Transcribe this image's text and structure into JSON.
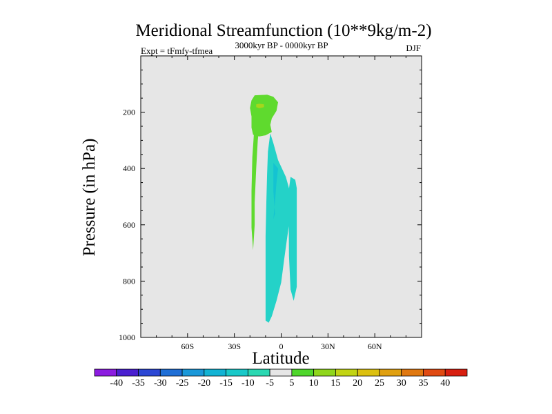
{
  "chart_data": {
    "type": "heatmap",
    "title": "Meridional Streamfunction (10**9kg/m-2)",
    "subtitle_left": "Expt = tFmfy-tfmea",
    "subtitle_center": "3000kyr BP - 0000kyr BP",
    "subtitle_right": "DJF",
    "xlabel": "Latitude",
    "ylabel": "Pressure (in hPa)",
    "xlim": [
      -90,
      90
    ],
    "ylim": [
      1000,
      0
    ],
    "x_ticks": [
      {
        "value": -60,
        "label": "60S"
      },
      {
        "value": -30,
        "label": "30S"
      },
      {
        "value": 0,
        "label": "0"
      },
      {
        "value": 30,
        "label": "30N"
      },
      {
        "value": 60,
        "label": "60N"
      }
    ],
    "y_ticks": [
      {
        "value": 200,
        "label": "200"
      },
      {
        "value": 400,
        "label": "400"
      },
      {
        "value": 600,
        "label": "600"
      },
      {
        "value": 800,
        "label": "800"
      },
      {
        "value": 1000,
        "label": "1000"
      }
    ],
    "background_color": "#e6e6e6",
    "colorbar": {
      "labels": [
        "-40",
        "-35",
        "-30",
        "-25",
        "-20",
        "-15",
        "-10",
        "-5",
        "5",
        "10",
        "15",
        "20",
        "25",
        "30",
        "35",
        "40"
      ],
      "colors": [
        "#8c1ce0",
        "#4a1fd0",
        "#2c47d4",
        "#1f6fd6",
        "#1a98d9",
        "#12b3d4",
        "#19c9c9",
        "#2ad8b2",
        "#e6e6e6",
        "#4fd62c",
        "#8fd61c",
        "#c2d414",
        "#dcc010",
        "#e0a010",
        "#e07810",
        "#e04a12",
        "#d81f10"
      ]
    },
    "regions": [
      {
        "name": "positive-5-to-10-cell-upper",
        "level": "5 to 10",
        "color": "#5fda2e",
        "points": [
          [
            -17,
            140
          ],
          [
            -9,
            138
          ],
          [
            -5,
            145
          ],
          [
            -2,
            165
          ],
          [
            -3,
            195
          ],
          [
            -6,
            222
          ],
          [
            -7,
            245
          ],
          [
            -6,
            270
          ],
          [
            -10,
            282
          ],
          [
            -14,
            286
          ],
          [
            -18,
            280
          ],
          [
            -19,
            255
          ],
          [
            -19,
            215
          ],
          [
            -20,
            185
          ],
          [
            -19,
            158
          ]
        ]
      },
      {
        "name": "positive-10-to-15-core",
        "level": "10 to 15",
        "color": "#a6d61c",
        "points": [
          [
            -16,
            172
          ],
          [
            -14,
            170
          ],
          [
            -11,
            172
          ],
          [
            -11,
            182
          ],
          [
            -14,
            186
          ],
          [
            -16,
            182
          ]
        ]
      },
      {
        "name": "positive-5-to-10-cell-south",
        "level": "5 to 10",
        "color": "#5fda2e",
        "points": [
          [
            -16,
            250
          ],
          [
            -14,
            250
          ],
          [
            -15,
            300
          ],
          [
            -16,
            400
          ],
          [
            -17,
            520
          ],
          [
            -17,
            600
          ],
          [
            -18,
            690
          ],
          [
            -19,
            610
          ],
          [
            -19,
            480
          ],
          [
            -18.5,
            360
          ],
          [
            -17.5,
            280
          ]
        ]
      },
      {
        "name": "negative-10-to-5-cell",
        "level": "-10 to -5",
        "color": "#24d2c8",
        "points": [
          [
            -7,
            275
          ],
          [
            -5,
            310
          ],
          [
            -2,
            370
          ],
          [
            3,
            430
          ],
          [
            6,
            490
          ],
          [
            6,
            560
          ],
          [
            4,
            640
          ],
          [
            2,
            720
          ],
          [
            0,
            805
          ],
          [
            -3,
            870
          ],
          [
            -6,
            925
          ],
          [
            -8,
            948
          ],
          [
            -10,
            940
          ],
          [
            -10,
            870
          ],
          [
            -10,
            780
          ],
          [
            -10,
            640
          ],
          [
            -9.5,
            520
          ],
          [
            -9,
            420
          ],
          [
            -8.5,
            340
          ]
        ]
      },
      {
        "name": "negative-10-to-5-cell-east",
        "level": "-10 to -5",
        "color": "#24d2c8",
        "points": [
          [
            6,
            430
          ],
          [
            9,
            440
          ],
          [
            10,
            470
          ],
          [
            10,
            560
          ],
          [
            10,
            700
          ],
          [
            10,
            820
          ],
          [
            8,
            870
          ],
          [
            6,
            830
          ],
          [
            5,
            710
          ],
          [
            4.8,
            560
          ],
          [
            4.8,
            480
          ]
        ]
      },
      {
        "name": "negative-15-to-10-core",
        "level": "-15 to -10",
        "color": "#14c3d2",
        "points": [
          [
            -5,
            380
          ],
          [
            -2,
            400
          ],
          [
            -3,
            450
          ],
          [
            -4,
            520
          ],
          [
            -5,
            580
          ],
          [
            -4,
            560
          ],
          [
            -5,
            480
          ]
        ]
      }
    ]
  }
}
